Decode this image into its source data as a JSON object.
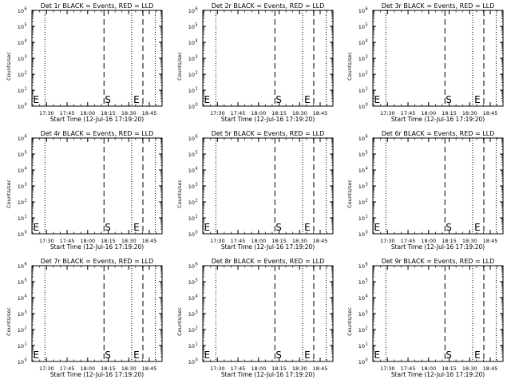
{
  "figure": {
    "background": "#ffffff",
    "foreground": "#000000"
  },
  "chart_data": [
    {
      "type": "line",
      "title": "Det 1r BLACK = Events, RED = LLD",
      "xlabel": "Start Time (12-Jul-16 17:19:20)",
      "ylabel": "Counts/sec"
    },
    {
      "type": "line",
      "title": "Det 2r BLACK = Events, RED = LLD",
      "xlabel": "Start Time (12-Jul-16 17:19:20)",
      "ylabel": "Counts/sec"
    },
    {
      "type": "line",
      "title": "Det 3r BLACK = Events, RED = LLD",
      "xlabel": "Start Time (12-Jul-16 17:19:20)",
      "ylabel": "Counts/sec"
    },
    {
      "type": "line",
      "title": "Det 4r BLACK = Events, RED = LLD",
      "xlabel": "Start Time (12-Jul-16 17:19:20)",
      "ylabel": "Counts/sec"
    },
    {
      "type": "line",
      "title": "Det 5r BLACK = Events, RED = LLD",
      "xlabel": "Start Time (12-Jul-16 17:19:20)",
      "ylabel": "Counts/sec"
    },
    {
      "type": "line",
      "title": "Det 6r BLACK = Events, RED = LLD",
      "xlabel": "Start Time (12-Jul-16 17:19:20)",
      "ylabel": "Counts/sec"
    },
    {
      "type": "line",
      "title": "Det 7r BLACK = Events, RED = LLD",
      "xlabel": "Start Time (12-Jul-16 17:19:20)",
      "ylabel": "Counts/sec"
    },
    {
      "type": "line",
      "title": "Det 8r BLACK = Events, RED = LLD",
      "xlabel": "Start Time (12-Jul-16 17:19:20)",
      "ylabel": "Counts/sec"
    },
    {
      "type": "line",
      "title": "Det 9r BLACK = Events, RED = LLD",
      "xlabel": "Start Time (12-Jul-16 17:19:20)",
      "ylabel": "Counts/sec"
    }
  ],
  "shared": {
    "x_ticks": [
      "17:30",
      "17:45",
      "18:00",
      "18:15",
      "18:30",
      "18:45"
    ],
    "x_tick_minutes": [
      10.67,
      25.67,
      40.67,
      55.67,
      70.67,
      85.67
    ],
    "xlim_minutes": [
      0,
      95
    ],
    "y_scale": "log",
    "y_tick_exponents": [
      0,
      1,
      2,
      3,
      4,
      5,
      6
    ],
    "ylim": [
      1,
      1000000
    ],
    "markers": [
      {
        "label": "E",
        "x_minutes": 0.3
      },
      {
        "label": "S",
        "x_minutes": 52.6
      },
      {
        "label": "E",
        "x_minutes": 73.5
      }
    ],
    "dashed_lines_minutes": [
      52.6,
      81.0
    ],
    "dotted_lines_minutes": [
      9.5,
      72.8,
      90.0
    ],
    "grid": false
  }
}
